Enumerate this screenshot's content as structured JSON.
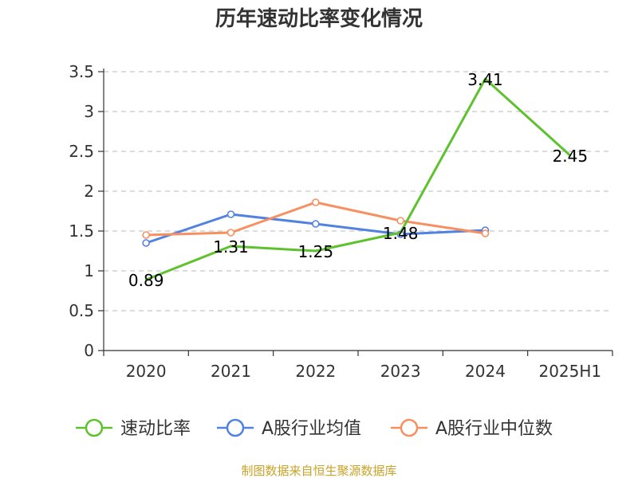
{
  "source_text": "制图数据来自恒生聚源数据库",
  "chart_data": {
    "type": "line",
    "title": "历年速动比率变化情况",
    "xlabel": "",
    "ylabel": "",
    "categories": [
      "2020",
      "2021",
      "2022",
      "2023",
      "2024",
      "2025H1"
    ],
    "ylim": [
      0,
      3.5
    ],
    "yticks": [
      "0",
      "0.5",
      "1",
      "1.5",
      "2",
      "2.5",
      "3",
      "3.5"
    ],
    "grid": true,
    "legend_position": "bottom",
    "series": [
      {
        "name": "速动比率",
        "color": "#5ec22e",
        "values": [
          0.89,
          1.31,
          1.25,
          1.48,
          3.41,
          2.45
        ],
        "labels": [
          "0.89",
          "1.31",
          "1.25",
          "1.48",
          "3.41",
          "2.45"
        ],
        "show_markers": false
      },
      {
        "name": "A股行业均值",
        "color": "#5282e0",
        "values": [
          1.35,
          1.71,
          1.59,
          1.46,
          1.51,
          null
        ],
        "show_markers": true
      },
      {
        "name": "A股行业中位数",
        "color": "#f79060",
        "values": [
          1.45,
          1.48,
          1.86,
          1.63,
          1.47,
          null
        ],
        "show_markers": true
      }
    ]
  }
}
